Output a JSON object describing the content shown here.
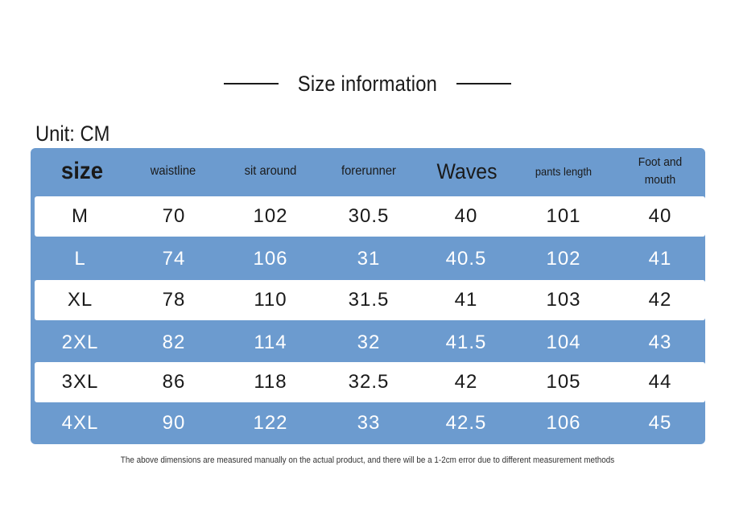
{
  "title": "Size information",
  "unit": "Unit: CM",
  "table": {
    "headers": [
      "size",
      "waistline",
      "sit around",
      "forerunner",
      "Waves",
      "pants length",
      "Foot and\nmouth"
    ],
    "rows": [
      [
        "M",
        "70",
        "102",
        "30.5",
        "40",
        "101",
        "40"
      ],
      [
        "L",
        "74",
        "106",
        "31",
        "40.5",
        "102",
        "41"
      ],
      [
        "XL",
        "78",
        "110",
        "31.5",
        "41",
        "103",
        "42"
      ],
      [
        "2XL",
        "82",
        "114",
        "32",
        "41.5",
        "104",
        "43"
      ],
      [
        "3XL",
        "86",
        "118",
        "32.5",
        "42",
        "105",
        "44"
      ],
      [
        "4XL",
        "90",
        "122",
        "33",
        "42.5",
        "106",
        "45"
      ]
    ]
  },
  "footnote": "The above dimensions are measured manually on the actual product, and there will be a 1-2cm error due to different measurement methods",
  "colors": {
    "table_blue": "#6c9bcf",
    "row_white": "#ffffff",
    "text_dark": "#1a1a1a"
  }
}
